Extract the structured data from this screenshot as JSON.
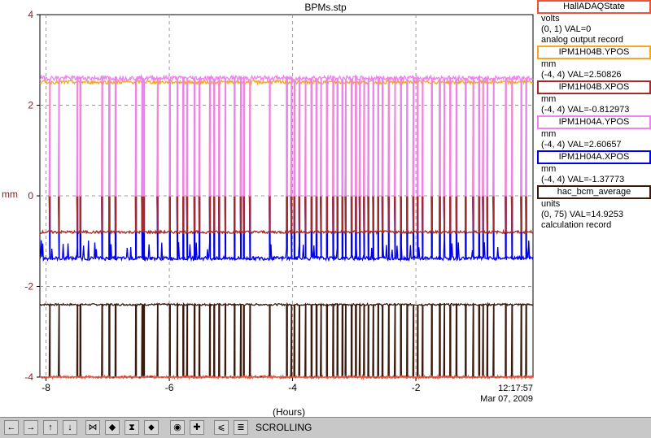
{
  "chart_data": {
    "type": "line",
    "title": "BPMs.stp",
    "xlabel": "(Hours)",
    "ylabel": "mm",
    "xlim": [
      -8.1,
      -0.1
    ],
    "ylim": [
      -4,
      4
    ],
    "x_ticks": [
      "-8",
      "-6",
      "-4",
      "-2"
    ],
    "y_ticks": [
      "4",
      "2",
      "0",
      "-2",
      "-4"
    ],
    "grid": true,
    "series": [
      {
        "name": "HallADAQState",
        "color": "#e8543c",
        "baseline": -4.0,
        "spike": -4.0
      },
      {
        "name": "IPM1H04B.YPOS",
        "color": "#f5a623",
        "baseline": 2.51,
        "spike": 0.0
      },
      {
        "name": "IPM1H04B.XPOS",
        "color": "#a52a2a",
        "baseline": -0.8,
        "spike": 0.0
      },
      {
        "name": "IPM1H04A.YPOS",
        "color": "#ee82ee",
        "baseline": 2.6,
        "spike": 0.0
      },
      {
        "name": "IPM1H04A.XPOS",
        "color": "#0000ee",
        "baseline": -1.38,
        "spike": 0.0
      },
      {
        "name": "hac_bcm_average",
        "color": "#3b1a0e",
        "baseline": -2.4,
        "spike": -4.0
      }
    ],
    "dropouts": [
      -7.95,
      -7.8,
      -7.5,
      -7.45,
      -7.1,
      -6.98,
      -6.88,
      -6.55,
      -6.45,
      -6.42,
      -6.2,
      -6.0,
      -5.88,
      -5.78,
      -5.72,
      -5.6,
      -5.52,
      -5.35,
      -5.28,
      -5.2,
      -5.1,
      -4.95,
      -4.85,
      -4.8,
      -4.7,
      -4.38,
      -4.1,
      -4.03,
      -3.98,
      -3.9,
      -3.8,
      -3.7,
      -3.62,
      -3.55,
      -3.45,
      -3.35,
      -3.28,
      -3.2,
      -3.15,
      -3.05,
      -2.98,
      -2.92,
      -2.85,
      -2.78,
      -2.7,
      -2.62,
      -2.55,
      -2.45,
      -2.35,
      -2.25,
      -2.15,
      -2.05,
      -1.98,
      -1.9,
      -1.75,
      -1.62,
      -1.55,
      -1.45,
      -1.35,
      -1.2,
      -1.08,
      -0.98,
      -0.92,
      -0.85,
      -0.75,
      -0.55,
      -0.45,
      -0.3,
      -0.22
    ]
  },
  "legend": [
    {
      "name": "HallADAQState",
      "lines": [
        "volts",
        "(0, 1) VAL=0",
        "analog output record"
      ],
      "color": "#e8543c"
    },
    {
      "name": "IPM1H04B.YPOS",
      "lines": [
        "mm",
        "(-4, 4) VAL=2.50826"
      ],
      "color": "#f5a623"
    },
    {
      "name": "IPM1H04B.XPOS",
      "lines": [
        "mm",
        "(-4, 4) VAL=-0.812973"
      ],
      "color": "#a52a2a"
    },
    {
      "name": "IPM1H04A.YPOS",
      "lines": [
        "mm",
        "(-4, 4) VAL=2.60657"
      ],
      "color": "#ee82ee"
    },
    {
      "name": "IPM1H04A.XPOS",
      "lines": [
        "mm",
        "(-4, 4) VAL=-1.37773"
      ],
      "color": "#0000ee"
    },
    {
      "name": "hac_bcm_average",
      "lines": [
        "units",
        "(0, 75) VAL=14.9253",
        "calculation record"
      ],
      "color": "#3b1a0e"
    }
  ],
  "time": {
    "clock": "12:17:57",
    "date": "Mar 07, 2009"
  },
  "toolbar": {
    "status": "SCROLLING",
    "buttons": [
      {
        "name": "pan-left-icon",
        "glyph": "←"
      },
      {
        "name": "pan-right-icon",
        "glyph": "→"
      },
      {
        "name": "pan-up-icon",
        "glyph": "↑"
      },
      {
        "name": "pan-down-icon",
        "glyph": "↓"
      },
      {
        "name": "zoom-in-x-icon",
        "glyph": "⋈"
      },
      {
        "name": "zoom-out-x-icon",
        "glyph": "◆"
      },
      {
        "name": "zoom-in-y-icon",
        "glyph": "⧗"
      },
      {
        "name": "zoom-out-y-icon",
        "glyph": "⬥"
      },
      {
        "name": "reset-icon",
        "glyph": "◉"
      },
      {
        "name": "crosshair-icon",
        "glyph": "✚"
      },
      {
        "name": "autoscale-icon",
        "glyph": "⩽"
      },
      {
        "name": "toggle-scroll-icon",
        "glyph": "≣"
      }
    ]
  }
}
